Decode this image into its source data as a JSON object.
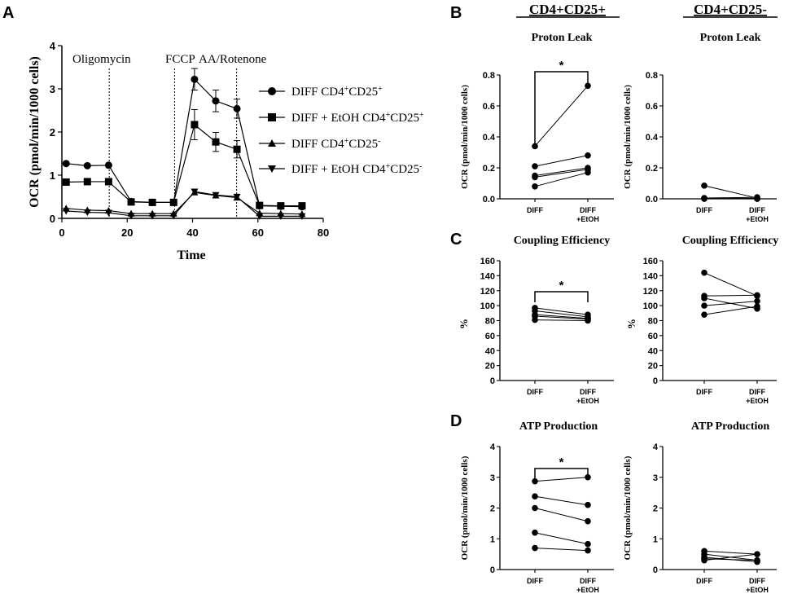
{
  "panel_letters": {
    "a": "A",
    "b": "B",
    "c": "C",
    "d": "D"
  },
  "column_headers": {
    "left": "CD4+CD25+",
    "right": "CD4+CD25-"
  },
  "chart_data": [
    {
      "id": "A",
      "type": "line",
      "ylabel": "OCR (pmol/min/1000 cells)",
      "xlabel": "Time",
      "xlim": [
        0,
        80
      ],
      "ylim": [
        0,
        4
      ],
      "xticks": [
        "0",
        "20",
        "40",
        "60",
        "80"
      ],
      "yticks": [
        "0",
        "1",
        "2",
        "3",
        "4"
      ],
      "injections": [
        {
          "label": "Oligomycin",
          "x": 14.5
        },
        {
          "label": "FCCP",
          "x": 34.5
        },
        {
          "label": "AA/Rotenone",
          "x": 53.5
        }
      ],
      "x": [
        1.3,
        7.8,
        14.3,
        21.2,
        27.7,
        34.2,
        40.6,
        47.1,
        53.6,
        60.5,
        67.0,
        73.5
      ],
      "series": [
        {
          "name": "DIFF CD4+CD25+",
          "marker": "circle",
          "values": [
            1.27,
            1.22,
            1.23,
            0.39,
            0.37,
            0.37,
            3.22,
            2.72,
            2.54,
            0.29,
            0.28,
            0.27
          ],
          "errors": [
            0.03,
            0.03,
            0.03,
            0.03,
            0.03,
            0.03,
            0.25,
            0.25,
            0.22,
            0.03,
            0.03,
            0.03
          ]
        },
        {
          "name": "DIFF + EtOH CD4+CD25+",
          "marker": "square",
          "values": [
            0.84,
            0.85,
            0.85,
            0.38,
            0.37,
            0.37,
            2.17,
            1.77,
            1.6,
            0.3,
            0.29,
            0.29
          ],
          "errors": [
            0.03,
            0.03,
            0.03,
            0.03,
            0.03,
            0.03,
            0.35,
            0.22,
            0.2,
            0.03,
            0.03,
            0.03
          ]
        },
        {
          "name": "DIFF CD4+CD25-",
          "marker": "triangle-up",
          "values": [
            0.23,
            0.19,
            0.18,
            0.11,
            0.11,
            0.11,
            0.6,
            0.53,
            0.48,
            0.12,
            0.11,
            0.1
          ],
          "errors": [
            0.02,
            0.02,
            0.02,
            0.02,
            0.02,
            0.02,
            0.03,
            0.03,
            0.03,
            0.02,
            0.02,
            0.02
          ]
        },
        {
          "name": "DIFF + EtOH CD4+CD25-",
          "marker": "triangle-down",
          "values": [
            0.17,
            0.14,
            0.13,
            0.06,
            0.06,
            0.06,
            0.62,
            0.54,
            0.5,
            0.05,
            0.05,
            0.05
          ],
          "errors": [
            0.02,
            0.02,
            0.02,
            0.02,
            0.02,
            0.02,
            0.03,
            0.03,
            0.03,
            0.02,
            0.02,
            0.02
          ]
        }
      ],
      "legend": [
        {
          "prefix": "DIFF CD4",
          "sup1": "+",
          "mid": "CD25",
          "sup2": "+"
        },
        {
          "prefix": "DIFF + EtOH CD4",
          "sup1": "+",
          "mid": "CD25",
          "sup2": "+"
        },
        {
          "prefix": "DIFF CD4",
          "sup1": "+",
          "mid": "CD25",
          "sup2": "-"
        },
        {
          "prefix": "DIFF + EtOH CD4",
          "sup1": "+",
          "mid": "CD25",
          "sup2": "-"
        }
      ]
    },
    {
      "id": "B-left",
      "type": "paired",
      "title": "Proton Leak",
      "ylabel": "OCR (pmol/min/1000 cells)",
      "ylim": [
        0,
        0.8
      ],
      "yticks": [
        "0.0",
        "0.2",
        "0.4",
        "0.6",
        "0.8"
      ],
      "categories": [
        "DIFF",
        "DIFF +EtOH"
      ],
      "significance": "*",
      "pairs": [
        [
          0.34,
          0.73
        ],
        [
          0.21,
          0.28
        ],
        [
          0.15,
          0.2
        ],
        [
          0.14,
          0.19
        ],
        [
          0.08,
          0.17
        ]
      ]
    },
    {
      "id": "B-right",
      "type": "paired",
      "title": "Proton Leak",
      "ylabel": "OCR (pmol/min/1000 cells)",
      "ylim": [
        0,
        0.8
      ],
      "yticks": [
        "0.0",
        "0.2",
        "0.4",
        "0.6",
        "0.8"
      ],
      "categories": [
        "DIFF",
        "DIFF +EtOH"
      ],
      "significance": "",
      "pairs": [
        [
          0.085,
          0.005
        ],
        [
          0.005,
          0.01
        ],
        [
          0.003,
          0.0
        ],
        [
          0.0,
          0.0
        ],
        [
          0.002,
          0.003
        ]
      ]
    },
    {
      "id": "C-left",
      "type": "paired",
      "title": "Coupling Efficiency",
      "ylabel": "%",
      "ylim": [
        0,
        160
      ],
      "yticks": [
        "0",
        "20",
        "40",
        "60",
        "80",
        "100",
        "120",
        "140",
        "160"
      ],
      "categories": [
        "DIFF",
        "DIFF +EtOH"
      ],
      "significance": "*",
      "pairs": [
        [
          97,
          88
        ],
        [
          93,
          85
        ],
        [
          88,
          83
        ],
        [
          86,
          82
        ],
        [
          81,
          80
        ]
      ]
    },
    {
      "id": "C-right",
      "type": "paired",
      "title": "Coupling Efficiency",
      "ylabel": "%",
      "ylim": [
        0,
        160
      ],
      "yticks": [
        "0",
        "20",
        "40",
        "60",
        "80",
        "100",
        "120",
        "140",
        "160"
      ],
      "categories": [
        "DIFF",
        "DIFF +EtOH"
      ],
      "significance": "",
      "pairs": [
        [
          144,
          113
        ],
        [
          113,
          114
        ],
        [
          110,
          96
        ],
        [
          100,
          106
        ],
        [
          88,
          99
        ]
      ]
    },
    {
      "id": "D-left",
      "type": "paired",
      "title": "ATP Production",
      "ylabel": "OCR (pmol/min/1000 cells)",
      "ylim": [
        0,
        4
      ],
      "yticks": [
        "0",
        "1",
        "2",
        "3",
        "4"
      ],
      "categories": [
        "DIFF",
        "DIFF +EtOH"
      ],
      "significance": "*",
      "pairs": [
        [
          2.87,
          3.0
        ],
        [
          2.38,
          2.1
        ],
        [
          2.0,
          1.57
        ],
        [
          1.2,
          0.83
        ],
        [
          0.7,
          0.62
        ]
      ]
    },
    {
      "id": "D-right",
      "type": "paired",
      "title": "ATP Production",
      "ylabel": "OCR (pmol/min/1000 cells)",
      "ylim": [
        0,
        4
      ],
      "yticks": [
        "0",
        "1",
        "2",
        "3",
        "4"
      ],
      "categories": [
        "DIFF",
        "DIFF +EtOH"
      ],
      "significance": "",
      "pairs": [
        [
          0.6,
          0.5
        ],
        [
          0.5,
          0.3
        ],
        [
          0.4,
          0.25
        ],
        [
          0.35,
          0.3
        ],
        [
          0.3,
          0.5
        ]
      ]
    }
  ]
}
